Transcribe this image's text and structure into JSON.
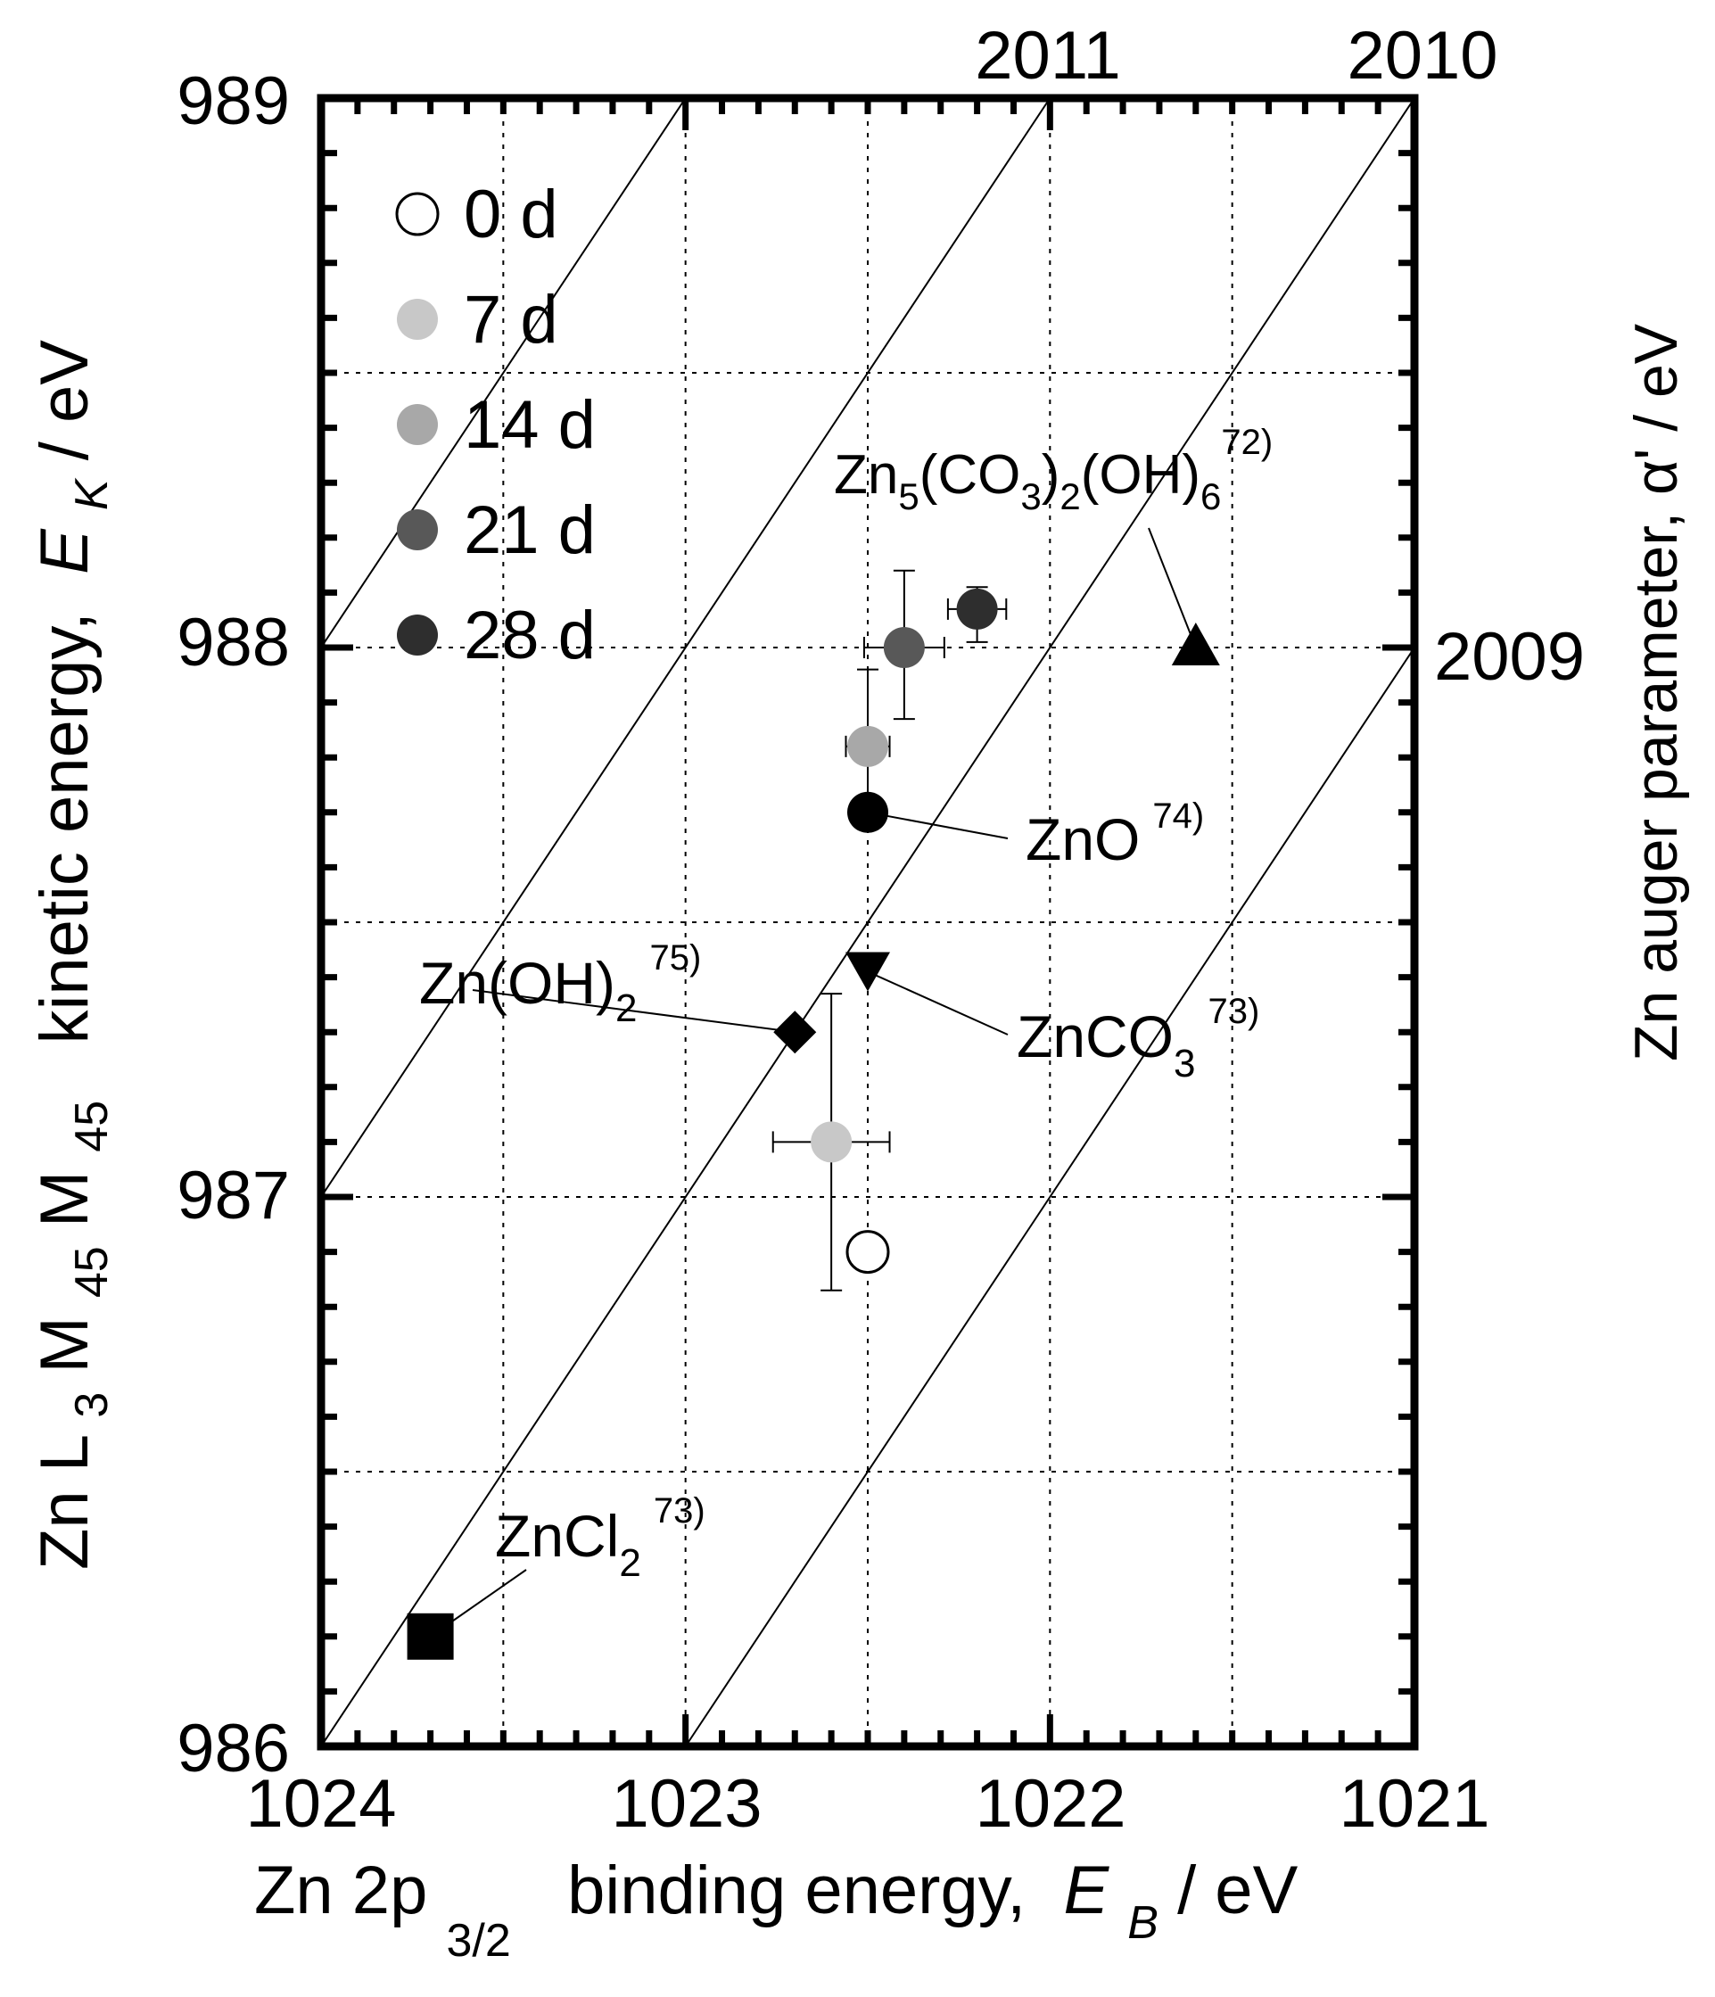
{
  "chart_data": {
    "type": "scatter",
    "title": "",
    "xlabel": {
      "prefix": "Zn 2p",
      "sub": "3/2",
      "middle": "  binding energy, ",
      "var": "E",
      "var_sub": "B",
      "suffix": " / eV"
    },
    "ylabel": {
      "prefix": "Zn L",
      "sub1": "3",
      "m1": "M",
      "sub2": "45",
      "m2": "M",
      "sub3": "45",
      "middle": "  kinetic energy, ",
      "var": "E",
      "var_sub": "K",
      "suffix": " / eV"
    },
    "y2label": "Zn auger parameter, α' / eV",
    "xlim": [
      1024,
      1021
    ],
    "ylim": [
      986,
      989
    ],
    "x_ticks": [
      "1024",
      "1023",
      "1022",
      "1021"
    ],
    "y_ticks": [
      "986",
      "987",
      "988",
      "989"
    ],
    "auger_ticks": [
      "2011",
      "2010",
      "2009"
    ],
    "auger_lines": [
      2012,
      2011,
      2010,
      2009
    ],
    "legend_position": "top-left",
    "series": [
      {
        "name": "0 d",
        "fill": "#ffffff",
        "x": 1022.5,
        "y": 986.9,
        "xerr": 0,
        "yerr_lo": 986.9,
        "yerr_hi": 986.9
      },
      {
        "name": "7 d",
        "fill": "#c8c8c8",
        "x": 1022.6,
        "y": 987.1,
        "xerr": 0.16,
        "yerr_lo": 986.83,
        "yerr_hi": 987.37
      },
      {
        "name": "14 d",
        "fill": "#a8a8a8",
        "x": 1022.5,
        "y": 987.82,
        "xerr": 0.06,
        "yerr_lo": 987.68,
        "yerr_hi": 987.96
      },
      {
        "name": "21 d",
        "fill": "#585858",
        "x": 1022.4,
        "y": 988.0,
        "xerr": 0.11,
        "yerr_lo": 987.87,
        "yerr_hi": 988.14
      },
      {
        "name": "28 d",
        "fill": "#2e2e2e",
        "x": 1022.2,
        "y": 988.07,
        "xerr": 0.08,
        "yerr_lo": 988.01,
        "yerr_hi": 988.11
      }
    ],
    "references": [
      {
        "name": "ZnO",
        "marker": "circle",
        "x": 1022.5,
        "y": 987.7,
        "label": "ZnO",
        "ref": "74)"
      },
      {
        "name": "ZnCO3",
        "marker": "triangle-down",
        "x": 1022.5,
        "y": 987.41,
        "label": "ZnCO",
        "label_sub": "3",
        "ref": "73)"
      },
      {
        "name": "Zn(OH)2",
        "marker": "diamond",
        "x": 1022.7,
        "y": 987.3,
        "label": "Zn(OH)",
        "label_sub": "2",
        "ref": "75)"
      },
      {
        "name": "Zn5(CO3)2(OH)6",
        "marker": "triangle-up",
        "x": 1021.6,
        "y": 988.0,
        "label": "Zn5(CO3)2(OH)6",
        "ref": "72)"
      },
      {
        "name": "ZnCl2",
        "marker": "square",
        "x": 1023.7,
        "y": 986.2,
        "label": "ZnCl",
        "label_sub": "2",
        "ref": "73)"
      }
    ]
  }
}
